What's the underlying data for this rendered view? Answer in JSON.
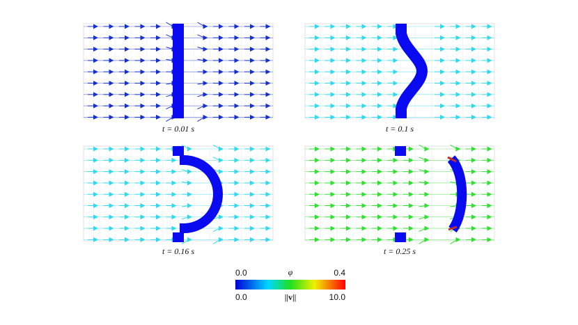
{
  "panels": [
    {
      "caption": "t = 0.01 s"
    },
    {
      "caption": "t = 0.1 s"
    },
    {
      "caption": "t = 0.16 s"
    },
    {
      "caption": "t = 0.25 s"
    }
  ],
  "colorbar": {
    "phi_label": "φ",
    "phi_min": "0.0",
    "phi_max": "0.4",
    "v_label": "||v||",
    "v_min": "0.0",
    "v_max": "10.0"
  }
}
